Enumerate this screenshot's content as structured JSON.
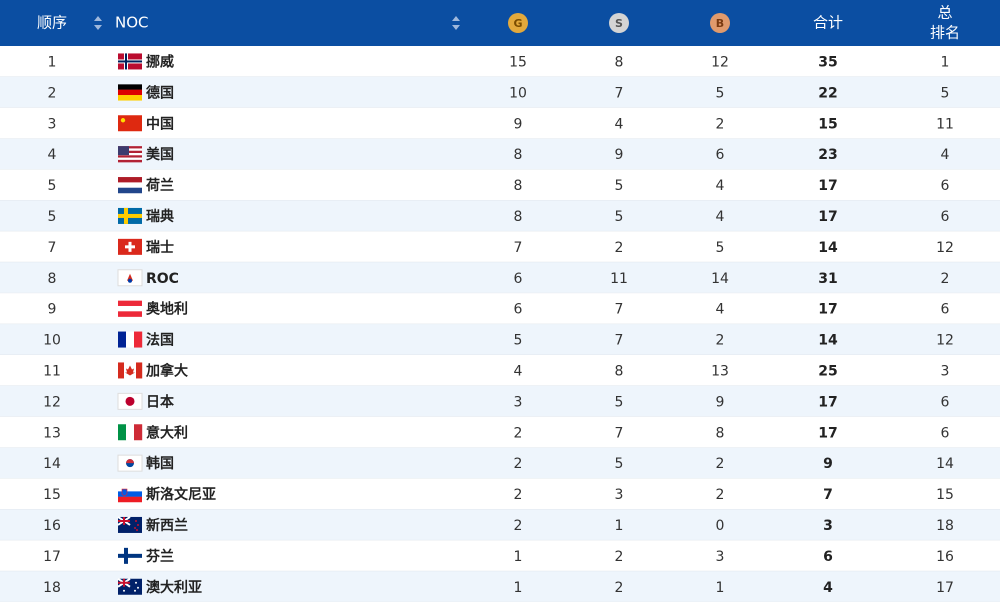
{
  "header": {
    "order": "顺序",
    "noc": "NOC",
    "gold": "G",
    "silver": "S",
    "bronze": "B",
    "total": "合计",
    "total_rank": [
      "总",
      "排名"
    ]
  },
  "rows": [
    [
      1,
      "挪威",
      15,
      8,
      12,
      35,
      1
    ],
    [
      2,
      "德国",
      10,
      7,
      5,
      22,
      5
    ],
    [
      3,
      "中国",
      9,
      4,
      2,
      15,
      11
    ],
    [
      4,
      "美国",
      8,
      9,
      6,
      23,
      4
    ],
    [
      5,
      "荷兰",
      8,
      5,
      4,
      17,
      6
    ],
    [
      5,
      "瑞典",
      8,
      5,
      4,
      17,
      6
    ],
    [
      7,
      "瑞士",
      7,
      2,
      5,
      14,
      12
    ],
    [
      8,
      "ROC",
      6,
      11,
      14,
      31,
      2
    ],
    [
      9,
      "奥地利",
      6,
      7,
      4,
      17,
      6
    ],
    [
      10,
      "法国",
      5,
      7,
      2,
      14,
      12
    ],
    [
      11,
      "加拿大",
      4,
      8,
      13,
      25,
      3
    ],
    [
      12,
      "日本",
      3,
      5,
      9,
      17,
      6
    ],
    [
      13,
      "意大利",
      2,
      7,
      8,
      17,
      6
    ],
    [
      14,
      "韩国",
      2,
      5,
      2,
      9,
      14
    ],
    [
      15,
      "斯洛文尼亚",
      2,
      3,
      2,
      7,
      15
    ],
    [
      16,
      "新西兰",
      2,
      1,
      0,
      3,
      18
    ],
    [
      17,
      "芬兰",
      1,
      2,
      3,
      6,
      16
    ],
    [
      18,
      "澳大利亚",
      1,
      2,
      1,
      4,
      17
    ]
  ]
}
